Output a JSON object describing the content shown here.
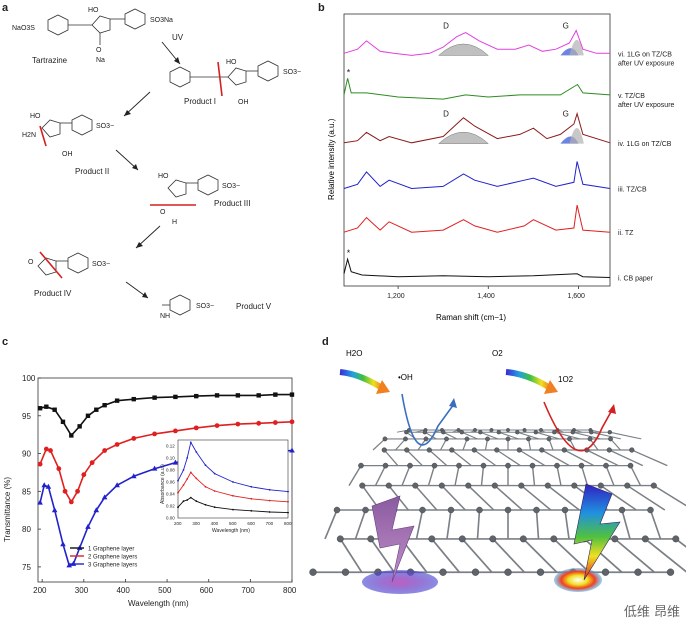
{
  "panels": {
    "a": "a",
    "b": "b",
    "c": "c",
    "d": "d"
  },
  "scheme": {
    "tartrazine_label": "Tartrazine",
    "tartrazine_groups": {
      "naso3": "NaO3S",
      "so3na": "SO3Na",
      "ho": "HO",
      "na": "Na",
      "o": "O"
    },
    "uv_label": "UV",
    "product1": "Product I",
    "product2": "Product II",
    "product3": "Product III",
    "product4": "Product IV",
    "product5": "Product V",
    "so3_group": "SO3−",
    "ho_group": "HO",
    "h2n_group": "H2N",
    "oh_group": "OH",
    "o_group": "O",
    "h_group": "H",
    "nh_group": "NH"
  },
  "raman": {
    "ylabel": "Relative intensity (a.u.)",
    "xlabel": "Raman shift (cm−1)",
    "xticks": [
      "1,200",
      "1,400",
      "1,600"
    ],
    "peak_d": "D",
    "peak_g": "G",
    "star": "*",
    "traces": [
      {
        "label_line1": "vi. 1LG on TZ/CB",
        "label_line2": "after UV exposure",
        "color": "#e040e0"
      },
      {
        "label_line1": "v. TZ/CB",
        "label_line2": "after UV exposure",
        "color": "#2e8b22"
      },
      {
        "label_line1": "iv. 1LG on TZ/CB",
        "label_line2": "",
        "color": "#8b1a1a"
      },
      {
        "label_line1": "iii. TZ/CB",
        "label_line2": "",
        "color": "#2222cc"
      },
      {
        "label_line1": "ii. TZ",
        "label_line2": "",
        "color": "#e02020"
      },
      {
        "label_line1": "i. CB paper",
        "label_line2": "",
        "color": "#111111"
      }
    ]
  },
  "diagram": {
    "h2o": "H2O",
    "o2": "O2",
    "oh_radical": "•OH",
    "singlet_o2": "1O2"
  },
  "watermark": "低维 昂维",
  "chart_data": [
    {
      "type": "line",
      "title": "",
      "xlabel": "Raman shift (cm−1)",
      "ylabel": "Relative intensity (a.u.)",
      "xlim": [
        1080,
        1670
      ],
      "xticks": [
        1200,
        1400,
        1600
      ],
      "grid": false,
      "series": [
        {
          "name": "vi. 1LG on TZ/CB after UV exposure",
          "x": [
            1080,
            1110,
            1130,
            1160,
            1190,
            1230,
            1270,
            1300,
            1330,
            1350,
            1380,
            1420,
            1460,
            1490,
            1520,
            1550,
            1580,
            1595,
            1610,
            1640,
            1670
          ],
          "y": [
            5.45,
            5.55,
            5.75,
            5.5,
            5.45,
            5.4,
            5.45,
            5.6,
            5.85,
            5.95,
            5.75,
            5.55,
            5.55,
            5.65,
            5.5,
            5.55,
            5.7,
            6.0,
            5.55,
            5.45,
            5.45
          ]
        },
        {
          "name": "v. TZ/CB after UV exposure",
          "x": [
            1080,
            1088,
            1096,
            1130,
            1200,
            1300,
            1350,
            1400,
            1470,
            1500,
            1560,
            1598,
            1610,
            1670
          ],
          "y": [
            4.45,
            4.85,
            4.5,
            4.5,
            4.4,
            4.35,
            4.45,
            4.4,
            4.45,
            4.45,
            4.45,
            4.7,
            4.5,
            4.45
          ]
        },
        {
          "name": "iv. 1LG on TZ/CB",
          "x": [
            1080,
            1110,
            1130,
            1160,
            1180,
            1230,
            1300,
            1330,
            1345,
            1370,
            1420,
            1470,
            1500,
            1530,
            1560,
            1590,
            1597,
            1610,
            1670
          ],
          "y": [
            3.3,
            3.35,
            3.55,
            3.35,
            3.45,
            3.3,
            3.45,
            3.75,
            3.9,
            3.7,
            3.4,
            3.5,
            3.65,
            3.4,
            3.5,
            3.75,
            4.0,
            3.5,
            3.3
          ]
        },
        {
          "name": "iii. TZ/CB",
          "x": [
            1080,
            1110,
            1130,
            1160,
            1180,
            1230,
            1300,
            1345,
            1370,
            1420,
            1480,
            1500,
            1550,
            1590,
            1597,
            1610,
            1670
          ],
          "y": [
            2.2,
            2.3,
            2.6,
            2.25,
            2.4,
            2.2,
            2.25,
            2.55,
            2.4,
            2.25,
            2.4,
            2.45,
            2.25,
            2.35,
            2.85,
            2.3,
            2.2
          ]
        },
        {
          "name": "ii. TZ",
          "x": [
            1080,
            1110,
            1130,
            1160,
            1180,
            1230,
            1300,
            1345,
            1370,
            1420,
            1480,
            1500,
            1550,
            1590,
            1597,
            1610,
            1670
          ],
          "y": [
            1.15,
            1.25,
            1.5,
            1.2,
            1.4,
            1.15,
            1.2,
            1.45,
            1.3,
            1.15,
            1.3,
            1.45,
            1.2,
            1.25,
            1.8,
            1.2,
            1.15
          ]
        },
        {
          "name": "i. CB paper",
          "x": [
            1080,
            1088,
            1096,
            1120,
            1200,
            1300,
            1400,
            1500,
            1597,
            1610,
            1670
          ],
          "y": [
            0.15,
            0.5,
            0.2,
            0.12,
            0.08,
            0.1,
            0.08,
            0.1,
            0.15,
            0.08,
            0.06
          ]
        }
      ]
    },
    {
      "type": "line",
      "title": "",
      "xlabel": "Wavelength (nm)",
      "ylabel": "Transmittance (%)",
      "xlim": [
        190,
        800
      ],
      "ylim": [
        73,
        100
      ],
      "xticks": [
        200,
        300,
        400,
        500,
        600,
        700,
        800
      ],
      "yticks": [
        75,
        80,
        85,
        90,
        95,
        100
      ],
      "grid": false,
      "legend": "bottom-left",
      "series": [
        {
          "name": "1 Graphene layer",
          "color": "#111111",
          "marker": "square",
          "x": [
            195,
            210,
            230,
            250,
            270,
            290,
            310,
            330,
            350,
            380,
            420,
            470,
            520,
            570,
            620,
            670,
            720,
            760,
            800
          ],
          "y": [
            96.0,
            96.2,
            95.8,
            94.2,
            92.4,
            93.6,
            95.0,
            95.8,
            96.4,
            97.0,
            97.2,
            97.4,
            97.5,
            97.6,
            97.7,
            97.7,
            97.7,
            97.8,
            97.8
          ]
        },
        {
          "name": "2 Graphene layers",
          "color": "#e02020",
          "marker": "circle",
          "x": [
            195,
            210,
            220,
            240,
            255,
            270,
            285,
            300,
            320,
            350,
            380,
            420,
            470,
            520,
            570,
            620,
            670,
            720,
            760,
            800
          ],
          "y": [
            88.6,
            90.6,
            90.4,
            88.0,
            85.0,
            83.6,
            85.0,
            87.2,
            88.8,
            90.4,
            91.2,
            92.0,
            92.6,
            93.0,
            93.4,
            93.7,
            93.9,
            94.0,
            94.1,
            94.2
          ]
        },
        {
          "name": "3 Graphene layers",
          "color": "#2222cc",
          "marker": "triangle",
          "x": [
            195,
            205,
            215,
            230,
            250,
            265,
            275,
            290,
            310,
            330,
            350,
            380,
            420,
            470,
            520,
            570,
            620,
            670,
            720,
            760,
            800
          ],
          "y": [
            83.5,
            85.8,
            85.6,
            82.5,
            78.0,
            75.2,
            75.4,
            77.5,
            80.3,
            82.5,
            84.2,
            85.8,
            87.0,
            88.0,
            88.8,
            89.3,
            89.7,
            90.0,
            90.2,
            90.3,
            90.4
          ]
        }
      ],
      "inset": {
        "xlabel": "Wavelength (nm)",
        "ylabel": "Absorbance (a.u.)",
        "xlim": [
          200,
          800
        ],
        "ylim": [
          0,
          0.13
        ],
        "xticks": [
          200,
          300,
          400,
          500,
          600,
          700,
          800
        ],
        "yticks": [
          0.0,
          0.02,
          0.04,
          0.06,
          0.08,
          0.1,
          0.12
        ],
        "series": [
          {
            "name": "1 Graphene layer",
            "color": "#111111",
            "x": [
              200,
              230,
              250,
              270,
              300,
              350,
              400,
              500,
              600,
              700,
              800
            ],
            "y": [
              0.018,
              0.028,
              0.03,
              0.034,
              0.028,
              0.022,
              0.018,
              0.014,
              0.012,
              0.01,
              0.009
            ]
          },
          {
            "name": "2 Graphene layers",
            "color": "#e02020",
            "x": [
              200,
              230,
              250,
              270,
              300,
              350,
              400,
              500,
              600,
              700,
              800
            ],
            "y": [
              0.042,
              0.055,
              0.065,
              0.076,
              0.066,
              0.052,
              0.045,
              0.037,
              0.032,
              0.029,
              0.027
            ]
          },
          {
            "name": "3 Graphene layers",
            "color": "#2222cc",
            "x": [
              200,
              230,
              250,
              270,
              300,
              350,
              400,
              500,
              600,
              700,
              800
            ],
            "y": [
              0.062,
              0.08,
              0.1,
              0.126,
              0.11,
              0.088,
              0.074,
              0.06,
              0.052,
              0.047,
              0.044
            ]
          }
        ]
      }
    }
  ]
}
